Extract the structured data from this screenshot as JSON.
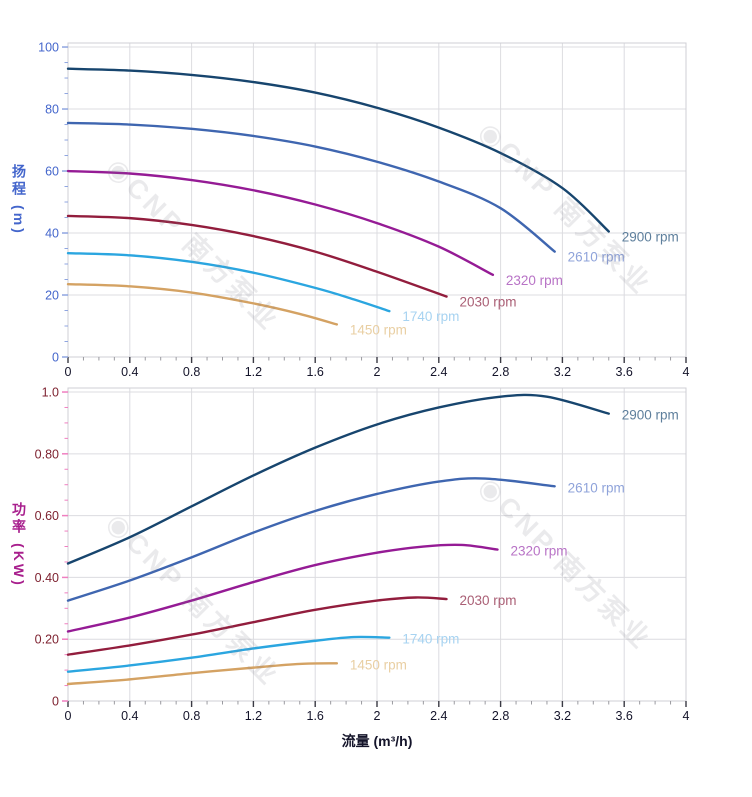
{
  "watermark": {
    "text": "◉CNP 南方泵业"
  },
  "chart_data": [
    {
      "type": "line",
      "title": "",
      "xlabel": "",
      "ylabel": "扬程 (m)",
      "x_range": [
        0,
        4
      ],
      "y_range": [
        0,
        101.3
      ],
      "x_tick_values": [
        0,
        0.4,
        0.8,
        1.2,
        1.6,
        2,
        2.4,
        2.8,
        3.2,
        3.6,
        4
      ],
      "x_tick_labels": [
        "0",
        "0.4",
        "0.8",
        "1.2",
        "1.6",
        "2",
        "2.4",
        "2.8",
        "3.2",
        "3.6",
        "4"
      ],
      "y_tick_values": [
        0,
        20,
        40,
        60,
        80,
        100
      ],
      "y_tick_labels": [
        "0",
        "20",
        "40",
        "60",
        "80",
        "100"
      ],
      "x_minor_step": 0.1,
      "y_minor_step": 5,
      "grid": true,
      "legend_position": "at-line-ends",
      "tick_text_color": "#4466cc",
      "tick_mark_color": "#8fa5e0",
      "axis_title_color": "#4466cc",
      "series": [
        {
          "name": "2900 rpm",
          "color": "#17456e",
          "label_color": "#5e7f9c",
          "points": [
            [
              0,
              93
            ],
            [
              0.4,
              92.4
            ],
            [
              0.8,
              91
            ],
            [
              1.2,
              88.7
            ],
            [
              1.6,
              85.3
            ],
            [
              2,
              80.4
            ],
            [
              2.4,
              74
            ],
            [
              2.8,
              65.8
            ],
            [
              3.2,
              54.5
            ],
            [
              3.5,
              40.5
            ]
          ]
        },
        {
          "name": "2610 rpm",
          "color": "#3f66b0",
          "label_color": "#8fa3da",
          "points": [
            [
              0,
              75.5
            ],
            [
              0.4,
              75
            ],
            [
              0.8,
              73.6
            ],
            [
              1.2,
              71.3
            ],
            [
              1.6,
              67.9
            ],
            [
              2,
              63
            ],
            [
              2.4,
              56.6
            ],
            [
              2.8,
              48
            ],
            [
              3.15,
              34
            ]
          ]
        },
        {
          "name": "2320 rpm",
          "color": "#951b95",
          "label_color": "#b873c6",
          "points": [
            [
              0,
              60
            ],
            [
              0.4,
              59.2
            ],
            [
              0.8,
              57.1
            ],
            [
              1.2,
              53.8
            ],
            [
              1.6,
              49.2
            ],
            [
              2,
              43.2
            ],
            [
              2.4,
              35.6
            ],
            [
              2.75,
              26.5
            ]
          ]
        },
        {
          "name": "2030 rpm",
          "color": "#921d3d",
          "label_color": "#aa5f75",
          "points": [
            [
              0,
              45.5
            ],
            [
              0.4,
              44.8
            ],
            [
              0.8,
              42.6
            ],
            [
              1.2,
              39
            ],
            [
              1.6,
              34
            ],
            [
              2,
              27.5
            ],
            [
              2.45,
              19.5
            ]
          ]
        },
        {
          "name": "1740 rpm",
          "color": "#2ba6e0",
          "label_color": "#a7d3f1",
          "points": [
            [
              0,
              33.5
            ],
            [
              0.4,
              32.8
            ],
            [
              0.8,
              30.7
            ],
            [
              1.2,
              27.2
            ],
            [
              1.6,
              22.3
            ],
            [
              1.85,
              18.6
            ],
            [
              2.08,
              14.8
            ]
          ]
        },
        {
          "name": "1450 rpm",
          "color": "#d4a263",
          "label_color": "#e9cfa3",
          "points": [
            [
              0,
              23.5
            ],
            [
              0.4,
              22.8
            ],
            [
              0.8,
              20.8
            ],
            [
              1.2,
              17.3
            ],
            [
              1.5,
              13.9
            ],
            [
              1.74,
              10.5
            ]
          ]
        }
      ]
    },
    {
      "type": "line",
      "title": "",
      "xlabel": "流量 (m³/h)",
      "ylabel": "功率 (KW)",
      "x_range": [
        0,
        4
      ],
      "y_range": [
        0,
        1.013
      ],
      "x_tick_values": [
        0,
        0.4,
        0.8,
        1.2,
        1.6,
        2,
        2.4,
        2.8,
        3.2,
        3.6,
        4
      ],
      "x_tick_labels": [
        "0",
        "0.4",
        "0.8",
        "1.2",
        "1.6",
        "2",
        "2.4",
        "2.8",
        "3.2",
        "3.6",
        "4"
      ],
      "y_tick_values": [
        0,
        0.2,
        0.4,
        0.6,
        0.8,
        1.0
      ],
      "y_tick_labels": [
        "0",
        "0.20",
        "0.40",
        "0.60",
        "0.80",
        "1.0"
      ],
      "x_minor_step": 0.1,
      "y_minor_step": 0.05,
      "grid": true,
      "legend_position": "at-line-ends",
      "tick_text_color": "#7e2230",
      "tick_mark_color": "#ef7fc0",
      "axis_title_color": "#a81f8d",
      "series": [
        {
          "name": "2900 rpm",
          "color": "#17456e",
          "label_color": "#5e7f9c",
          "points": [
            [
              0,
              0.445
            ],
            [
              0.4,
              0.53
            ],
            [
              0.8,
              0.63
            ],
            [
              1.2,
              0.73
            ],
            [
              1.6,
              0.82
            ],
            [
              2,
              0.895
            ],
            [
              2.4,
              0.95
            ],
            [
              2.8,
              0.985
            ],
            [
              3.1,
              0.985
            ],
            [
              3.5,
              0.93
            ]
          ]
        },
        {
          "name": "2610 rpm",
          "color": "#3f66b0",
          "label_color": "#8fa3da",
          "points": [
            [
              0,
              0.325
            ],
            [
              0.4,
              0.39
            ],
            [
              0.8,
              0.465
            ],
            [
              1.2,
              0.545
            ],
            [
              1.6,
              0.615
            ],
            [
              2,
              0.67
            ],
            [
              2.4,
              0.71
            ],
            [
              2.7,
              0.72
            ],
            [
              3.15,
              0.695
            ]
          ]
        },
        {
          "name": "2320 rpm",
          "color": "#951b95",
          "label_color": "#b873c6",
          "points": [
            [
              0,
              0.225
            ],
            [
              0.4,
              0.27
            ],
            [
              0.8,
              0.325
            ],
            [
              1.2,
              0.385
            ],
            [
              1.6,
              0.44
            ],
            [
              2,
              0.48
            ],
            [
              2.3,
              0.5
            ],
            [
              2.55,
              0.505
            ],
            [
              2.78,
              0.49
            ]
          ]
        },
        {
          "name": "2030 rpm",
          "color": "#921d3d",
          "label_color": "#aa5f75",
          "points": [
            [
              0,
              0.15
            ],
            [
              0.4,
              0.18
            ],
            [
              0.8,
              0.215
            ],
            [
              1.2,
              0.255
            ],
            [
              1.6,
              0.295
            ],
            [
              2,
              0.325
            ],
            [
              2.25,
              0.335
            ],
            [
              2.45,
              0.33
            ]
          ]
        },
        {
          "name": "1740 rpm",
          "color": "#2ba6e0",
          "label_color": "#a7d3f1",
          "points": [
            [
              0,
              0.095
            ],
            [
              0.4,
              0.115
            ],
            [
              0.8,
              0.14
            ],
            [
              1.2,
              0.17
            ],
            [
              1.6,
              0.195
            ],
            [
              1.85,
              0.207
            ],
            [
              2.08,
              0.205
            ]
          ]
        },
        {
          "name": "1450 rpm",
          "color": "#d4a263",
          "label_color": "#e9cfa3",
          "points": [
            [
              0,
              0.055
            ],
            [
              0.4,
              0.07
            ],
            [
              0.8,
              0.09
            ],
            [
              1.2,
              0.108
            ],
            [
              1.5,
              0.12
            ],
            [
              1.74,
              0.122
            ]
          ]
        }
      ]
    }
  ]
}
